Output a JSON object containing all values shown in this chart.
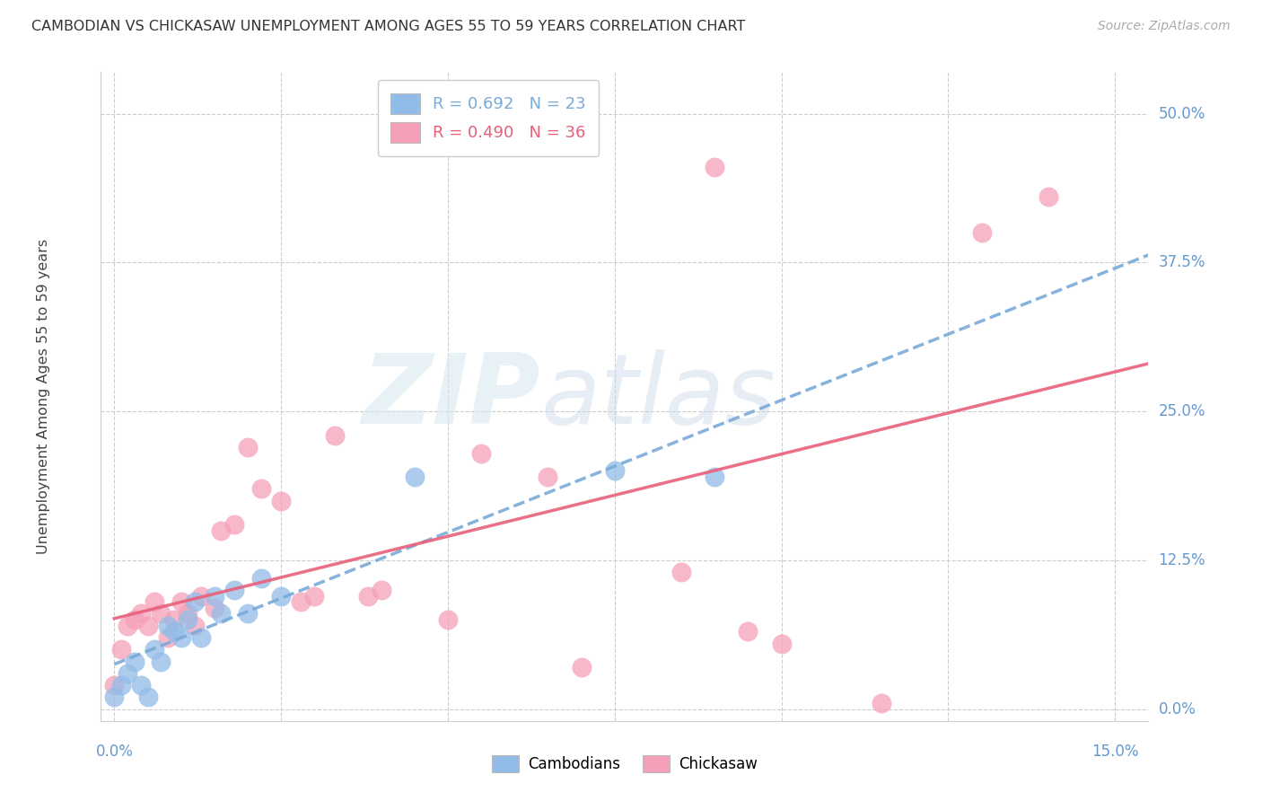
{
  "title": "CAMBODIAN VS CHICKASAW UNEMPLOYMENT AMONG AGES 55 TO 59 YEARS CORRELATION CHART",
  "source": "Source: ZipAtlas.com",
  "ylabel": "Unemployment Among Ages 55 to 59 years",
  "xlim": [
    -0.002,
    0.155
  ],
  "ylim": [
    -0.01,
    0.535
  ],
  "xtick_vals": [
    0.0,
    0.025,
    0.05,
    0.075,
    0.1,
    0.125,
    0.15
  ],
  "ytick_vals": [
    0.0,
    0.125,
    0.25,
    0.375,
    0.5
  ],
  "ytick_labels": [
    "0.0%",
    "12.5%",
    "25.0%",
    "37.5%",
    "50.0%"
  ],
  "xtick_show": [
    "0.0%",
    "",
    "",
    "",
    "",
    "",
    "15.0%"
  ],
  "watermark_zip": "ZIP",
  "watermark_atlas": "atlas",
  "cam_R": 0.692,
  "cam_N": 23,
  "chi_R": 0.49,
  "chi_N": 36,
  "cam_color": "#92bce8",
  "chi_color": "#f5a0b8",
  "cam_line_color": "#7aaad8",
  "chi_line_color": "#e8607a",
  "bg_color": "#ffffff",
  "grid_color": "#cccccc",
  "right_label_color": "#6699cc",
  "cam_x": [
    0.0,
    0.001,
    0.002,
    0.003,
    0.004,
    0.005,
    0.006,
    0.007,
    0.008,
    0.009,
    0.01,
    0.011,
    0.012,
    0.013,
    0.015,
    0.016,
    0.018,
    0.02,
    0.022,
    0.025,
    0.045,
    0.075,
    0.09
  ],
  "cam_y": [
    0.01,
    0.02,
    0.03,
    0.04,
    0.02,
    0.01,
    0.05,
    0.04,
    0.07,
    0.065,
    0.06,
    0.075,
    0.09,
    0.06,
    0.095,
    0.08,
    0.1,
    0.08,
    0.11,
    0.095,
    0.195,
    0.2,
    0.195
  ],
  "chi_x": [
    0.0,
    0.001,
    0.002,
    0.003,
    0.004,
    0.005,
    0.006,
    0.007,
    0.008,
    0.009,
    0.01,
    0.011,
    0.012,
    0.013,
    0.015,
    0.016,
    0.018,
    0.02,
    0.022,
    0.025,
    0.028,
    0.03,
    0.033,
    0.038,
    0.04,
    0.05,
    0.055,
    0.065,
    0.07,
    0.085,
    0.09,
    0.095,
    0.1,
    0.115,
    0.13,
    0.14
  ],
  "chi_y": [
    0.02,
    0.05,
    0.07,
    0.075,
    0.08,
    0.07,
    0.09,
    0.08,
    0.06,
    0.075,
    0.09,
    0.08,
    0.07,
    0.095,
    0.085,
    0.15,
    0.155,
    0.22,
    0.185,
    0.175,
    0.09,
    0.095,
    0.23,
    0.095,
    0.1,
    0.075,
    0.215,
    0.195,
    0.035,
    0.115,
    0.455,
    0.065,
    0.055,
    0.005,
    0.4,
    0.43
  ]
}
